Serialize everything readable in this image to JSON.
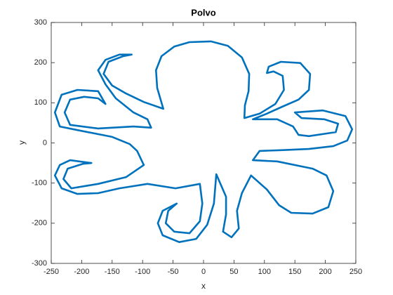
{
  "chart_data": {
    "type": "line",
    "title": "Polvo",
    "x_label": "x",
    "y_label": "y",
    "x": [
      -66,
      -76,
      -78,
      -69,
      -48,
      -23,
      12,
      40,
      63,
      75,
      74,
      68,
      67,
      92,
      118,
      132,
      130,
      115,
      104,
      107,
      127,
      159,
      175,
      173,
      156,
      129,
      104,
      81,
      121,
      147,
      156,
      173,
      217,
      221,
      198,
      161,
      150,
      196,
      233,
      244,
      236,
      213,
      173,
      127,
      92,
      81,
      121,
      179,
      202,
      213,
      205,
      179,
      144,
      124,
      104,
      78,
      63,
      55,
      58,
      46,
      32,
      37,
      37,
      21,
      17,
      6,
      -12,
      -40,
      -67,
      -75,
      -67,
      -44,
      -58,
      -62,
      -48,
      -23,
      -6,
      -2,
      -6,
      -46,
      -92,
      -138,
      -173,
      -207,
      -233,
      -244,
      -236,
      -219,
      -184,
      -198,
      -223,
      -230,
      -217,
      -173,
      -127,
      -98,
      -109,
      -121,
      -150,
      -207,
      -236,
      -244,
      -233,
      -207,
      -173,
      -161,
      -173,
      -196,
      -219,
      -228,
      -219,
      -173,
      -115,
      -86,
      -92,
      -115,
      -144,
      -161,
      -173,
      -161,
      -138,
      -118,
      -132,
      -156,
      -164,
      -150,
      -127,
      -98,
      -66
    ],
    "values": [
      85,
      137,
      181,
      216,
      240,
      251,
      253,
      242,
      213,
      172,
      129,
      94,
      62,
      73,
      97,
      132,
      167,
      178,
      174,
      190,
      202,
      199,
      172,
      132,
      108,
      90,
      73,
      59,
      59,
      41,
      20,
      17,
      27,
      48,
      59,
      62,
      76,
      81,
      67,
      34,
      6,
      -8,
      -15,
      -18,
      -20,
      -43,
      -46,
      -64,
      -81,
      -120,
      -160,
      -176,
      -174,
      -155,
      -116,
      -81,
      -125,
      -169,
      -213,
      -235,
      -221,
      -178,
      -134,
      -78,
      -151,
      -204,
      -239,
      -247,
      -230,
      -200,
      -169,
      -151,
      -169,
      -200,
      -221,
      -225,
      -195,
      -151,
      -102,
      -113,
      -102,
      -113,
      -125,
      -127,
      -113,
      -81,
      -55,
      -43,
      -50,
      -52,
      -64,
      -90,
      -113,
      -102,
      -85,
      -55,
      -20,
      -3,
      15,
      32,
      41,
      76,
      120,
      132,
      129,
      97,
      111,
      115,
      108,
      76,
      45,
      36,
      41,
      38,
      59,
      76,
      111,
      146,
      181,
      207,
      220,
      220,
      216,
      202,
      172,
      143,
      123,
      102,
      85
    ],
    "color": "#0072bd",
    "xlim": [
      -250,
      250
    ],
    "xticks": [
      -250,
      -200,
      -150,
      -100,
      -50,
      0,
      50,
      100,
      150,
      200,
      250
    ],
    "ylim": [
      -300,
      300
    ],
    "yticks": [
      -300,
      -200,
      -100,
      0,
      100,
      200,
      300
    ]
  }
}
